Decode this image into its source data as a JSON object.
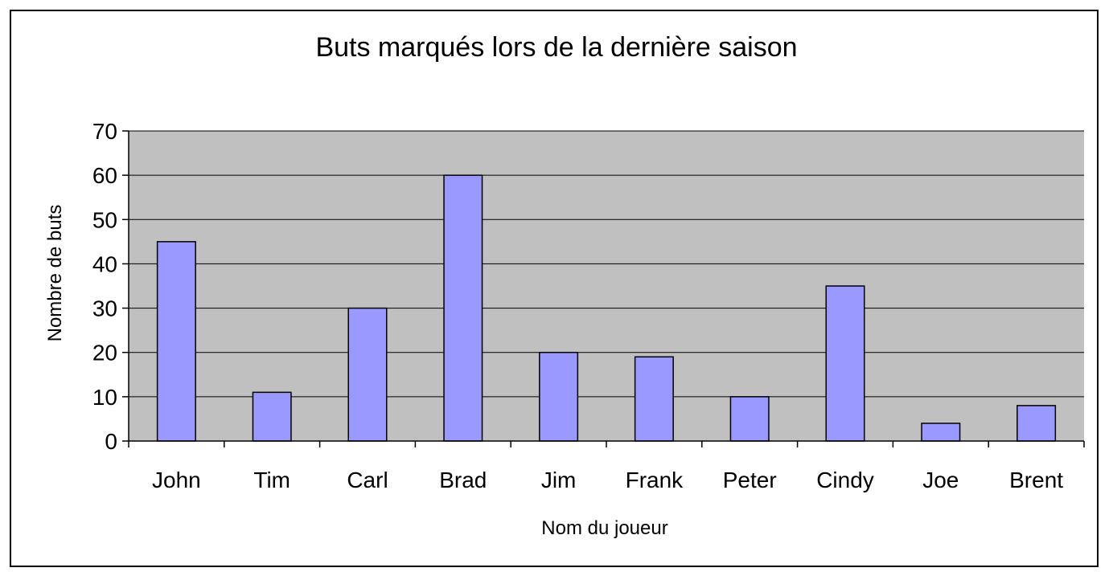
{
  "chart_data": {
    "type": "bar",
    "title": "Buts marqués lors de la dernière saison",
    "xlabel": "Nom du joueur",
    "ylabel": "Nombre de buts",
    "categories": [
      "John",
      "Tim",
      "Carl",
      "Brad",
      "Jim",
      "Frank",
      "Peter",
      "Cindy",
      "Joe",
      "Brent"
    ],
    "values": [
      45,
      11,
      30,
      60,
      20,
      19,
      10,
      35,
      4,
      8
    ],
    "ylim": [
      0,
      70
    ],
    "yticks": [
      0,
      10,
      20,
      30,
      40,
      50,
      60,
      70
    ],
    "grid": true,
    "legend": "none",
    "colors": {
      "bar_fill": "#9999ff",
      "bar_stroke": "#000000",
      "plot_background": "#c0c0c0",
      "gridline": "#000000"
    }
  }
}
